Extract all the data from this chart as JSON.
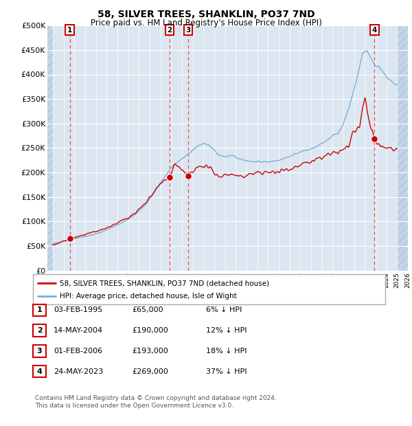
{
  "title": "58, SILVER TREES, SHANKLIN, PO37 7ND",
  "subtitle": "Price paid vs. HM Land Registry's House Price Index (HPI)",
  "ylabel_ticks": [
    "£0",
    "£50K",
    "£100K",
    "£150K",
    "£200K",
    "£250K",
    "£300K",
    "£350K",
    "£400K",
    "£450K",
    "£500K"
  ],
  "ylim": [
    0,
    500000
  ],
  "ytick_values": [
    0,
    50000,
    100000,
    150000,
    200000,
    250000,
    300000,
    350000,
    400000,
    450000,
    500000
  ],
  "xlim_start": 1993.0,
  "xlim_end": 2026.5,
  "hpi_data_start": 1993.5,
  "hpi_data_end": 2025.5,
  "sale_points": [
    {
      "year": 1995.085,
      "price": 65000,
      "label": "1"
    },
    {
      "year": 2004.37,
      "price": 190000,
      "label": "2"
    },
    {
      "year": 2006.08,
      "price": 193000,
      "label": "3"
    },
    {
      "year": 2023.39,
      "price": 269000,
      "label": "4"
    }
  ],
  "legend_property_label": "58, SILVER TREES, SHANKLIN, PO37 7ND (detached house)",
  "legend_hpi_label": "HPI: Average price, detached house, Isle of Wight",
  "table_rows": [
    {
      "num": "1",
      "date": "03-FEB-1995",
      "price": "£65,000",
      "pct": "6% ↓ HPI"
    },
    {
      "num": "2",
      "date": "14-MAY-2004",
      "price": "£190,000",
      "pct": "12% ↓ HPI"
    },
    {
      "num": "3",
      "date": "01-FEB-2006",
      "price": "£193,000",
      "pct": "18% ↓ HPI"
    },
    {
      "num": "4",
      "date": "24-MAY-2023",
      "price": "£269,000",
      "pct": "37% ↓ HPI"
    }
  ],
  "footnote": "Contains HM Land Registry data © Crown copyright and database right 2024.\nThis data is licensed under the Open Government Licence v3.0.",
  "bg_chart": "#dce6f1",
  "bg_hatch": "#c5d5e8",
  "line_property_color": "#cc0000",
  "line_hpi_color": "#7bafd4",
  "grid_color": "#ffffff",
  "dashed_line_color": "#ff4444",
  "marker_color": "#cc0000"
}
